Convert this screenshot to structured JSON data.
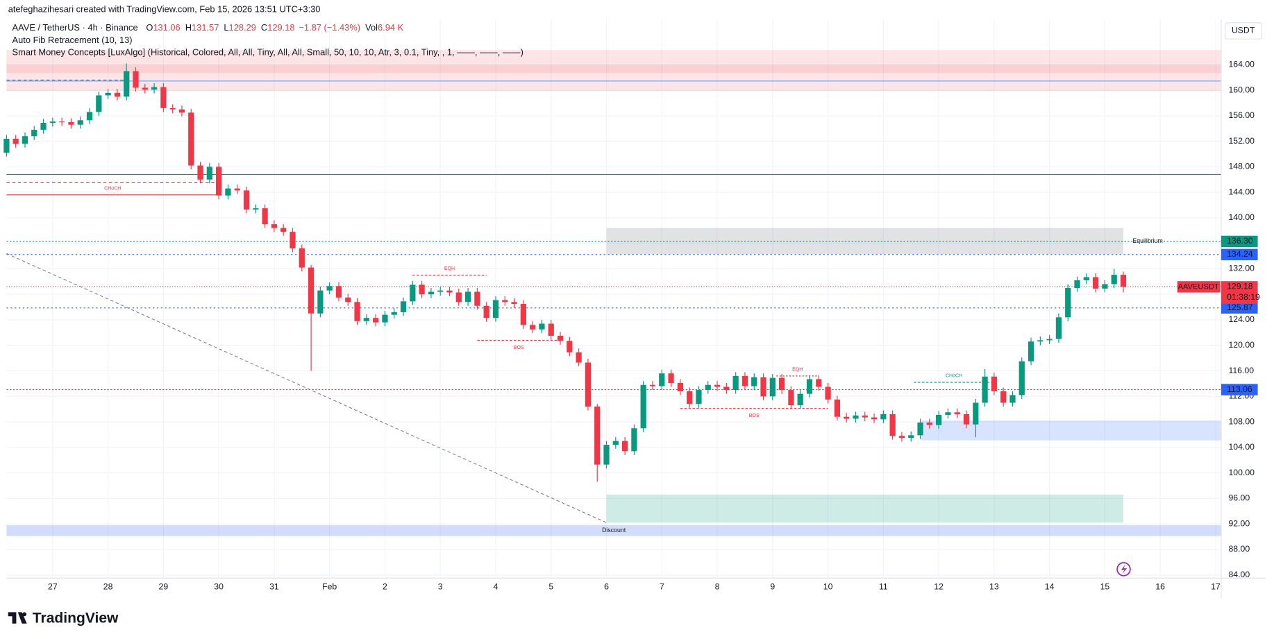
{
  "header": {
    "credit": "atefeghazihesari created with TradingView.com, Feb 15, 2026 13:51 UTC+3:30",
    "symbol": "AAVE / TetherUS · 4h · Binance",
    "ohlc": [
      {
        "label": "O",
        "value": "131.06"
      },
      {
        "label": "H",
        "value": "131.57"
      },
      {
        "label": "L",
        "value": "128.29"
      },
      {
        "label": "C",
        "value": "129.18"
      }
    ],
    "change": "−1.87 (−1.43%)",
    "volume": {
      "label": "Vol",
      "value": "6.94 K"
    },
    "indicators": [
      "Auto Fib Retracement (10, 13)",
      "Smart Money Concepts [LuxAlgo] (Historical, Colored, All, All, Tiny, All, All, Small, 50, 10, 10, Atr, 3, 0.1, Tiny, , 1, ——, ——, ——)"
    ],
    "currency": "USDT",
    "brand": "TradingView"
  },
  "chart_data": {
    "type": "candlestick",
    "up_color": "#089981",
    "down_color": "#f23645",
    "grid": true,
    "xlim": [
      0,
      131.6
    ],
    "ylim": [
      83.5,
      171.1
    ],
    "xticks": [
      {
        "value": 5,
        "label": "27"
      },
      {
        "value": 11,
        "label": "28"
      },
      {
        "value": 17,
        "label": "29"
      },
      {
        "value": 23,
        "label": "30"
      },
      {
        "value": 29,
        "label": "31"
      },
      {
        "value": 35,
        "label": "Feb"
      },
      {
        "value": 41,
        "label": "2"
      },
      {
        "value": 47,
        "label": "3"
      },
      {
        "value": 53,
        "label": "4"
      },
      {
        "value": 59,
        "label": "5"
      },
      {
        "value": 65,
        "label": "6"
      },
      {
        "value": 71,
        "label": "7"
      },
      {
        "value": 77,
        "label": "8"
      },
      {
        "value": 83,
        "label": "9"
      },
      {
        "value": 89,
        "label": "10"
      },
      {
        "value": 95,
        "label": "11"
      },
      {
        "value": 101,
        "label": "12"
      },
      {
        "value": 107,
        "label": "13"
      },
      {
        "value": 113,
        "label": "14"
      },
      {
        "value": 119,
        "label": "15"
      },
      {
        "value": 125,
        "label": "16"
      },
      {
        "value": 131,
        "label": "17"
      }
    ],
    "yticks": [
      {
        "value": 84,
        "label": "84.00"
      },
      {
        "value": 88,
        "label": "88.00"
      },
      {
        "value": 92,
        "label": "92.00"
      },
      {
        "value": 96,
        "label": "96.00"
      },
      {
        "value": 100,
        "label": "100.00"
      },
      {
        "value": 104,
        "label": "104.00"
      },
      {
        "value": 108,
        "label": "108.00"
      },
      {
        "value": 112,
        "label": "112.00"
      },
      {
        "value": 116,
        "label": "116.00"
      },
      {
        "value": 120,
        "label": "120.00"
      },
      {
        "value": 124,
        "label": "124.00"
      },
      {
        "value": 128,
        "label": "128.00"
      },
      {
        "value": 132,
        "label": "132.00"
      },
      {
        "value": 136,
        "label": "136.00"
      },
      {
        "value": 140,
        "label": "140.00"
      },
      {
        "value": 144,
        "label": "144.00"
      },
      {
        "value": 148,
        "label": "148.00"
      },
      {
        "value": 152,
        "label": "152.00"
      },
      {
        "value": 156,
        "label": "156.00"
      },
      {
        "value": 160,
        "label": "160.00"
      },
      {
        "value": 164,
        "label": "164.00"
      }
    ],
    "open": [
      150.2,
      152.4,
      151.6,
      152.8,
      153.8,
      154.9,
      155.1,
      155.0,
      154.6,
      155.3,
      156.6,
      159.2,
      159.6,
      159.0,
      163.0,
      160.4,
      160.1,
      160.5,
      157.2,
      157.0,
      156.5,
      148.2,
      146.0,
      148.0,
      143.5,
      144.6,
      144.3,
      141.3,
      141.5,
      139.0,
      138.4,
      137.8,
      135.2,
      132.2,
      125.0,
      128.6,
      129.3,
      127.5,
      126.8,
      123.8,
      124.3,
      123.6,
      124.8,
      125.2,
      126.9,
      129.5,
      128.0,
      128.4,
      128.6,
      128.3,
      126.8,
      128.4,
      126.2,
      124.3,
      127.1,
      126.8,
      126.5,
      123.2,
      122.5,
      123.4,
      121.5,
      120.7,
      118.9,
      117.3,
      110.4,
      101.3,
      104.4,
      105.0,
      103.4,
      107.0,
      113.8,
      113.6,
      115.6,
      114.1,
      112.8,
      110.8,
      113.0,
      113.8,
      113.5,
      113.0,
      115.2,
      113.6,
      115.0,
      112.0,
      114.9,
      113.0,
      110.6,
      112.4,
      114.7,
      113.5,
      111.5,
      108.8,
      108.5,
      109.0,
      108.7,
      108.4,
      109.2,
      105.8,
      105.5,
      105.9,
      107.9,
      107.5,
      109.1,
      109.5,
      109.2,
      107.6,
      111.0,
      115.1,
      112.8,
      111.0,
      112.2,
      117.5,
      120.6,
      120.8,
      121.0,
      124.4,
      129.0,
      130.2,
      130.7,
      128.9,
      129.6,
      131.06
    ],
    "high": [
      153.0,
      153.0,
      153.4,
      154.4,
      155.5,
      155.7,
      155.7,
      155.6,
      155.9,
      157.2,
      159.8,
      160.2,
      160.2,
      164.2,
      163.6,
      161.0,
      161.1,
      161.1,
      157.8,
      157.6,
      157.1,
      148.8,
      148.6,
      148.6,
      145.2,
      145.2,
      144.9,
      142.1,
      142.1,
      139.6,
      139.0,
      138.4,
      135.8,
      132.6,
      129.2,
      129.9,
      129.9,
      128.1,
      127.4,
      124.9,
      124.9,
      125.4,
      125.8,
      127.5,
      130.1,
      130.1,
      129.0,
      129.2,
      129.2,
      128.9,
      129.0,
      129.0,
      126.8,
      127.7,
      127.7,
      127.4,
      127.1,
      123.8,
      124.0,
      124.0,
      122.1,
      121.3,
      119.5,
      117.9,
      110.8,
      105.0,
      105.6,
      105.6,
      107.6,
      114.4,
      114.4,
      116.2,
      116.2,
      114.7,
      113.4,
      113.6,
      114.4,
      114.4,
      114.1,
      115.8,
      115.8,
      115.6,
      115.6,
      115.5,
      115.5,
      113.6,
      113.0,
      115.3,
      115.3,
      114.1,
      112.1,
      109.4,
      109.6,
      109.6,
      109.3,
      109.8,
      109.8,
      106.4,
      106.5,
      108.5,
      108.5,
      109.7,
      110.1,
      110.1,
      109.8,
      111.6,
      116.3,
      115.7,
      113.4,
      112.8,
      118.1,
      121.2,
      121.4,
      121.6,
      125.0,
      129.6,
      130.8,
      131.3,
      131.3,
      130.2,
      132.0,
      131.57
    ],
    "low": [
      149.6,
      151.0,
      151.0,
      152.2,
      153.2,
      154.3,
      154.4,
      154.0,
      154.0,
      154.7,
      156.0,
      158.6,
      158.4,
      158.4,
      159.8,
      159.5,
      159.5,
      156.6,
      156.4,
      155.9,
      147.6,
      145.4,
      145.4,
      142.9,
      142.9,
      143.7,
      140.7,
      140.7,
      138.4,
      137.8,
      137.2,
      134.6,
      131.6,
      116.0,
      124.4,
      128.0,
      126.9,
      126.2,
      123.2,
      123.2,
      123.0,
      123.0,
      124.2,
      124.6,
      126.3,
      127.4,
      127.4,
      127.8,
      127.7,
      126.2,
      126.2,
      125.6,
      123.7,
      123.7,
      126.2,
      125.9,
      122.6,
      121.9,
      121.9,
      120.9,
      120.1,
      118.3,
      116.7,
      109.8,
      98.6,
      100.7,
      103.8,
      102.8,
      102.8,
      106.4,
      113.0,
      113.0,
      113.5,
      112.2,
      110.2,
      110.2,
      112.4,
      112.9,
      112.4,
      112.4,
      113.0,
      113.0,
      111.4,
      111.4,
      112.4,
      110.0,
      110.0,
      111.8,
      112.9,
      110.9,
      108.2,
      107.9,
      107.9,
      108.1,
      107.8,
      107.8,
      105.2,
      104.9,
      104.9,
      105.3,
      106.9,
      106.9,
      108.5,
      108.6,
      107.0,
      105.6,
      110.4,
      112.2,
      110.4,
      110.4,
      111.6,
      116.9,
      120.0,
      120.2,
      120.4,
      123.8,
      128.4,
      129.6,
      128.3,
      128.3,
      129.0,
      128.29
    ],
    "close": [
      152.4,
      151.6,
      152.8,
      153.8,
      154.9,
      155.1,
      155.0,
      154.6,
      155.3,
      156.6,
      159.2,
      159.6,
      159.0,
      163.0,
      160.4,
      160.1,
      160.5,
      157.2,
      157.0,
      156.5,
      148.2,
      146.0,
      148.0,
      143.5,
      144.6,
      144.3,
      141.3,
      141.5,
      139.0,
      138.4,
      137.8,
      135.2,
      132.2,
      125.0,
      128.6,
      129.3,
      127.5,
      126.8,
      123.8,
      124.3,
      123.6,
      124.8,
      125.2,
      126.9,
      129.5,
      128.0,
      128.4,
      128.6,
      128.3,
      126.8,
      128.4,
      126.2,
      124.3,
      127.1,
      126.8,
      126.5,
      123.2,
      122.5,
      123.4,
      121.5,
      120.7,
      118.9,
      117.3,
      110.4,
      101.3,
      104.4,
      105.0,
      103.4,
      107.0,
      113.8,
      113.6,
      115.6,
      114.1,
      112.8,
      110.8,
      113.0,
      113.8,
      113.5,
      113.0,
      115.2,
      113.6,
      115.0,
      112.0,
      114.9,
      113.0,
      110.6,
      112.4,
      114.7,
      113.5,
      111.5,
      108.8,
      108.5,
      109.0,
      108.7,
      108.4,
      109.2,
      105.8,
      105.5,
      105.9,
      107.9,
      107.5,
      109.1,
      109.5,
      109.2,
      107.6,
      111.0,
      115.1,
      112.8,
      111.0,
      112.2,
      117.5,
      120.6,
      120.8,
      121.0,
      124.4,
      129.0,
      130.2,
      130.7,
      128.9,
      129.6,
      131.06,
      129.18
    ],
    "zones": [
      {
        "x": [
          0,
          131.6
        ],
        "y": [
          166.3,
          159.9
        ],
        "color": "rgba(242,54,69,0.13)"
      },
      {
        "x": [
          0,
          131.6
        ],
        "y": [
          164.0,
          162.7
        ],
        "color": "rgba(242,54,69,0.12)"
      },
      {
        "x": [
          65,
          121
        ],
        "y": [
          138.4,
          134.3
        ],
        "color": "rgba(120,123,134,0.22)",
        "label": "Equilibrium",
        "label_color": "#b2b5be"
      },
      {
        "x": [
          65,
          121
        ],
        "y": [
          96.6,
          92.2
        ],
        "color": "rgba(8,153,129,0.2)"
      },
      {
        "x": [
          99.1,
          131.6
        ],
        "y": [
          108.2,
          105.1
        ],
        "color": "rgba(41,98,255,0.18)"
      },
      {
        "x": [
          0,
          131.6
        ],
        "y": [
          91.8,
          90.1
        ],
        "color": "rgba(41,98,255,0.22)",
        "label": "Discount",
        "label_color": "#089981"
      }
    ],
    "levels": [
      {
        "value": 161.45,
        "x": [
          0,
          131.6
        ],
        "color": "#5b9cf6",
        "dash": ""
      },
      {
        "value": 161.6,
        "x": [
          0,
          13
        ],
        "color": "#089981",
        "dash": "4 3"
      },
      {
        "value": 146.8,
        "x": [
          0,
          131.6
        ],
        "color": "#089981",
        "dash": ""
      },
      {
        "value": 145.5,
        "x": [
          0,
          23
        ],
        "color": "#f23645",
        "dash": "4 3"
      },
      {
        "value": 143.6,
        "x": [
          0,
          23
        ],
        "color": "#f23645",
        "dash": "",
        "label": "CHoCH"
      },
      {
        "value": 136.3,
        "x": [
          0,
          131.6
        ],
        "color": "#089981",
        "dash": "2 2"
      },
      {
        "value": 134.24,
        "x": [
          0,
          131.6
        ],
        "color": "#2962ff",
        "dash": "2 3"
      },
      {
        "value": 131.0,
        "x": [
          44,
          52
        ],
        "color": "#f23645",
        "dash": "3 2",
        "label": "EQH"
      },
      {
        "value": 129.18,
        "x": [
          0,
          131.6
        ],
        "color": "#f23645",
        "dash": "1 2"
      },
      {
        "value": 125.87,
        "x": [
          0,
          131.6
        ],
        "color": "#2962ff",
        "dash": "2 3"
      },
      {
        "value": 120.8,
        "x": [
          51,
          60
        ],
        "color": "#f23645",
        "dash": "3 2",
        "label": "BOS"
      },
      {
        "value": 115.2,
        "x": [
          83.4,
          88
        ],
        "color": "#f23645",
        "dash": "2 2",
        "label": "EQH"
      },
      {
        "value": 114.2,
        "x": [
          98.3,
          107
        ],
        "color": "#089981",
        "dash": "3 2",
        "label": "CHoCH"
      },
      {
        "value": 113.06,
        "x": [
          0,
          131.6
        ],
        "color": "#f23645",
        "dash": "2 2"
      },
      {
        "value": 110.1,
        "x": [
          73,
          89
        ],
        "color": "#f23645",
        "dash": "3 2",
        "label": "BOS"
      }
    ],
    "trendline": {
      "x": [
        0,
        65
      ],
      "y": [
        134.4,
        92.2
      ],
      "color": "#787b86"
    },
    "price_labels": [
      {
        "value": 136.3,
        "label": "136.30",
        "color": "#089981"
      },
      {
        "value": 134.24,
        "label": "134.24",
        "color": "#2962ff"
      },
      {
        "value": 125.87,
        "label": "125.87",
        "color": "#2962ff"
      },
      {
        "value": 113.06,
        "label": "113.06",
        "color": "#2962ff"
      },
      {
        "value": 129.18,
        "label": "129.18",
        "color": "#f23645",
        "countdown": "01:38:19",
        "tag": "AAVEUSDT"
      }
    ]
  }
}
